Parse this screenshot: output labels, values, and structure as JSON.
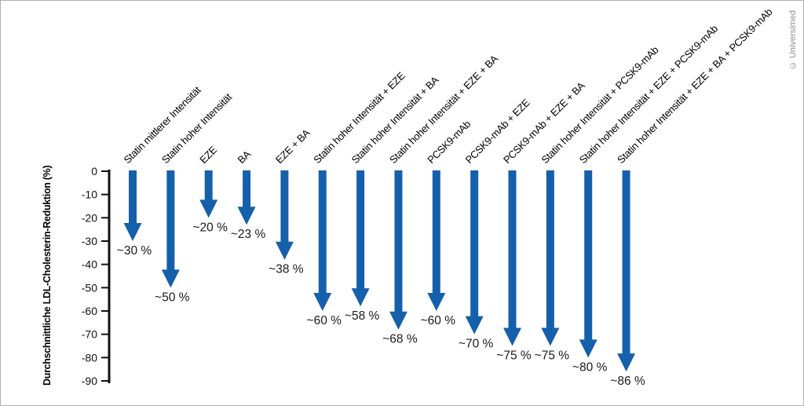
{
  "figure": {
    "watermark": "© Universimed",
    "background": "#ffffff",
    "border_color": "#b0b0b0"
  },
  "chart_data": {
    "type": "bar",
    "subtype": "downward-arrow-bars",
    "title": "",
    "xlabel": "",
    "ylabel": "Durchschnittliche LDL-Cholesterin-Reduktion (%)",
    "ylim": [
      -90,
      0
    ],
    "yticks": [
      0,
      -10,
      -20,
      -30,
      -40,
      -50,
      -60,
      -70,
      -80,
      -90
    ],
    "grid": false,
    "legend": false,
    "arrow_color": "#1560aa",
    "axis_color": "#111111",
    "categories": [
      "Statin mittlerer Intensität",
      "Statin hoher Intensität",
      "EZE",
      "BA",
      "EZE + BA",
      "Statin hoher Intensität + EZE",
      "Statin hoher Intensität + BA",
      "Statin hoher Intensität + EZE + BA",
      "PCSK9-mAb",
      "PCSK9-mAb + EZE",
      "PCSK9-mAb + EZE + BA",
      "Statin hoher Intensität + PCSK9-mAb",
      "Statin hoher Intensität + EZE + PCSK9-mAb",
      "Statin hoher Intensität + EZE + BA + PCSK9-mAb"
    ],
    "values": [
      -30,
      -50,
      -20,
      -23,
      -38,
      -60,
      -58,
      -68,
      -60,
      -70,
      -75,
      -75,
      -80,
      -86
    ],
    "value_labels": [
      "~30 %",
      "~50 %",
      "~20 %",
      "~23 %",
      "~38 %",
      "~60 %",
      "~58 %",
      "~68 %",
      "~60 %",
      "~70 %",
      "~75 %",
      "~75 %",
      "~80 %",
      "~86 %"
    ]
  }
}
